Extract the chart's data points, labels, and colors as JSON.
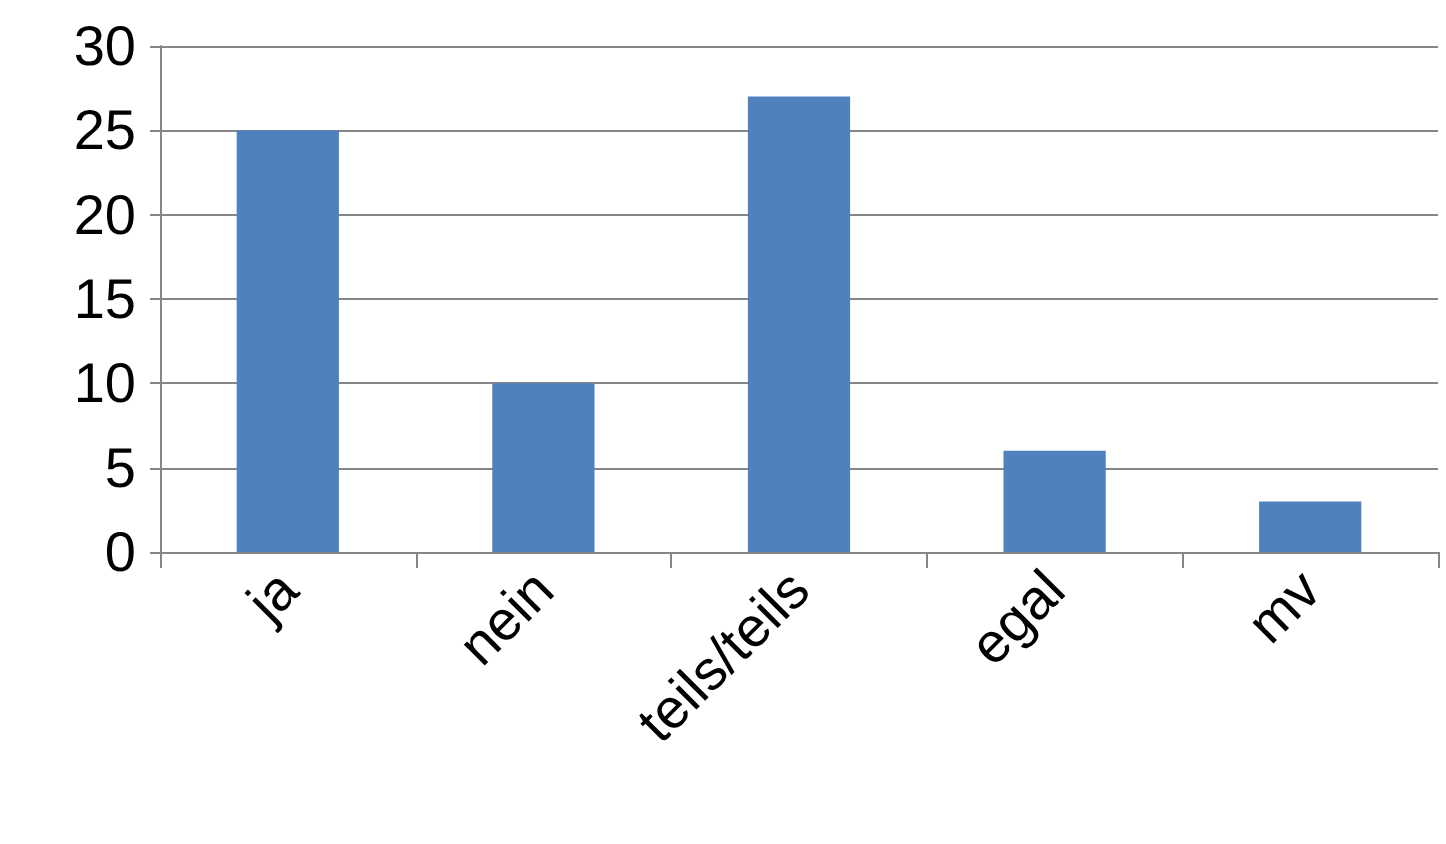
{
  "chart_data": {
    "type": "bar",
    "categories": [
      "ja",
      "nein",
      "teils/teils",
      "egal",
      "mv"
    ],
    "values": [
      25,
      10,
      27,
      6,
      3
    ],
    "color": "#4f81bd",
    "ylim": [
      0,
      30
    ],
    "yticks": [
      0,
      5,
      10,
      15,
      20,
      25,
      30
    ],
    "grid": "y"
  }
}
